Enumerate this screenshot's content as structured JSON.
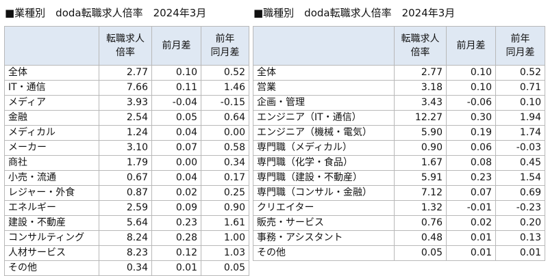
{
  "industry": {
    "title": "■業種別　doda転職求人倍率　2024年3月",
    "headers": {
      "ratio_line1": "転職求人",
      "ratio_line2": "倍率",
      "mom": "前月差",
      "yoy_line1": "前年",
      "yoy_line2": "同月差"
    },
    "rows": [
      {
        "label": "全体",
        "ratio": "2.77",
        "mom": "0.10",
        "yoy": "0.52"
      },
      {
        "label": "IT・通信",
        "ratio": "7.66",
        "mom": "0.11",
        "yoy": "1.46"
      },
      {
        "label": "メディア",
        "ratio": "3.93",
        "mom": "-0.04",
        "yoy": "-0.15"
      },
      {
        "label": "金融",
        "ratio": "2.54",
        "mom": "0.05",
        "yoy": "0.64"
      },
      {
        "label": "メディカル",
        "ratio": "1.24",
        "mom": "0.04",
        "yoy": "0.00"
      },
      {
        "label": "メーカー",
        "ratio": "3.10",
        "mom": "0.07",
        "yoy": "0.58"
      },
      {
        "label": "商社",
        "ratio": "1.79",
        "mom": "0.00",
        "yoy": "0.34"
      },
      {
        "label": "小売・流通",
        "ratio": "0.67",
        "mom": "0.04",
        "yoy": "0.17"
      },
      {
        "label": "レジャー・外食",
        "ratio": "0.87",
        "mom": "0.02",
        "yoy": "0.25"
      },
      {
        "label": "エネルギー",
        "ratio": "2.59",
        "mom": "0.09",
        "yoy": "0.90"
      },
      {
        "label": "建設・不動産",
        "ratio": "5.64",
        "mom": "0.23",
        "yoy": "1.61"
      },
      {
        "label": "コンサルティング",
        "ratio": "8.24",
        "mom": "0.28",
        "yoy": "1.00"
      },
      {
        "label": "人材サービス",
        "ratio": "8.23",
        "mom": "0.12",
        "yoy": "1.03"
      },
      {
        "label": "その他",
        "ratio": "0.34",
        "mom": "0.01",
        "yoy": "0.05"
      }
    ]
  },
  "occupation": {
    "title": "■職種別　doda転職求人倍率　2024年3月",
    "headers": {
      "ratio_line1": "転職求人",
      "ratio_line2": "倍率",
      "mom": "前月差",
      "yoy_line1": "前年",
      "yoy_line2": "同月差"
    },
    "rows": [
      {
        "label": "全体",
        "ratio": "2.77",
        "mom": "0.10",
        "yoy": "0.52"
      },
      {
        "label": "営業",
        "ratio": "3.18",
        "mom": "0.10",
        "yoy": "0.71"
      },
      {
        "label": "企画・管理",
        "ratio": "3.43",
        "mom": "-0.06",
        "yoy": "0.10"
      },
      {
        "label": "エンジニア（IT・通信）",
        "ratio": "12.27",
        "mom": "0.30",
        "yoy": "1.94"
      },
      {
        "label": "エンジニア（機械・電気）",
        "ratio": "5.90",
        "mom": "0.19",
        "yoy": "1.74"
      },
      {
        "label": "専門職（メディカル）",
        "ratio": "0.90",
        "mom": "0.06",
        "yoy": "-0.03"
      },
      {
        "label": "専門職（化学・食品）",
        "ratio": "1.67",
        "mom": "0.08",
        "yoy": "0.45"
      },
      {
        "label": "専門職（建設・不動産）",
        "ratio": "5.91",
        "mom": "0.23",
        "yoy": "1.54"
      },
      {
        "label": "専門職（コンサル・金融）",
        "ratio": "7.12",
        "mom": "0.07",
        "yoy": "0.69"
      },
      {
        "label": "クリエイター",
        "ratio": "1.32",
        "mom": "-0.01",
        "yoy": "-0.23"
      },
      {
        "label": "販売・サービス",
        "ratio": "0.76",
        "mom": "0.02",
        "yoy": "0.20"
      },
      {
        "label": "事務・アシスタント",
        "ratio": "0.48",
        "mom": "0.01",
        "yoy": "0.13"
      },
      {
        "label": "その他",
        "ratio": "0.05",
        "mom": "0.01",
        "yoy": "0.01"
      }
    ]
  }
}
